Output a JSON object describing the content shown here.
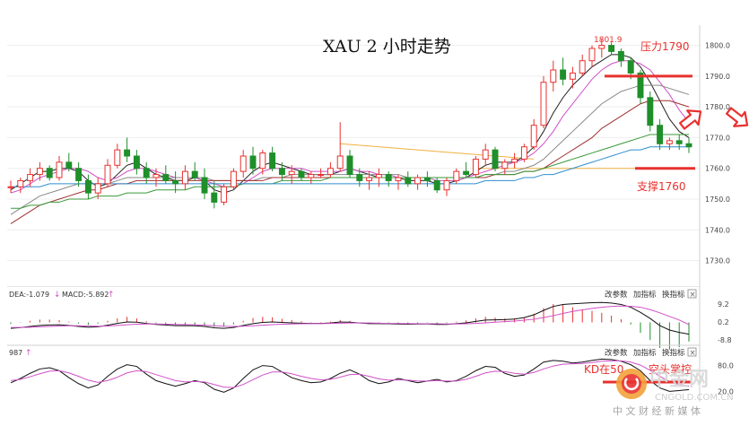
{
  "chart_data": [
    {
      "type": "candlestick",
      "title": "XAU 2 小时走势",
      "y_ticks": [
        1730,
        1740,
        1750,
        1760,
        1770,
        1780,
        1790,
        1800
      ],
      "ylim": [
        1722,
        1806
      ],
      "peak_label": "1801.9",
      "resistance": {
        "label": "压力1790",
        "value": 1790,
        "color": "#e8312f"
      },
      "support": {
        "label": "支撑1760",
        "value": 1760,
        "color": "#e8312f"
      },
      "candles_ohlc": [
        [
          1754,
          1756,
          1752,
          1754
        ],
        [
          1754,
          1757,
          1752,
          1756
        ],
        [
          1756,
          1760,
          1754,
          1758
        ],
        [
          1758,
          1762,
          1756,
          1760
        ],
        [
          1760,
          1761,
          1756,
          1757
        ],
        [
          1757,
          1764,
          1756,
          1762
        ],
        [
          1762,
          1765,
          1759,
          1760
        ],
        [
          1760,
          1762,
          1754,
          1756
        ],
        [
          1756,
          1758,
          1750,
          1752
        ],
        [
          1752,
          1757,
          1750,
          1755
        ],
        [
          1755,
          1763,
          1754,
          1761
        ],
        [
          1761,
          1768,
          1760,
          1766
        ],
        [
          1766,
          1770,
          1762,
          1764
        ],
        [
          1764,
          1766,
          1758,
          1760
        ],
        [
          1760,
          1762,
          1755,
          1757
        ],
        [
          1757,
          1760,
          1754,
          1758
        ],
        [
          1758,
          1761,
          1755,
          1756
        ],
        [
          1756,
          1759,
          1752,
          1755
        ],
        [
          1755,
          1761,
          1753,
          1759
        ],
        [
          1759,
          1762,
          1756,
          1757
        ],
        [
          1757,
          1760,
          1750,
          1752
        ],
        [
          1752,
          1756,
          1747,
          1749
        ],
        [
          1749,
          1755,
          1748,
          1754
        ],
        [
          1754,
          1760,
          1753,
          1759
        ],
        [
          1759,
          1766,
          1757,
          1764
        ],
        [
          1764,
          1767,
          1758,
          1760
        ],
        [
          1760,
          1766,
          1758,
          1765
        ],
        [
          1765,
          1767,
          1759,
          1760
        ],
        [
          1760,
          1762,
          1756,
          1758
        ],
        [
          1758,
          1761,
          1755,
          1759
        ],
        [
          1759,
          1760,
          1756,
          1757
        ],
        [
          1757,
          1759,
          1755,
          1758
        ],
        [
          1758,
          1760,
          1757,
          1758
        ],
        [
          1758,
          1762,
          1757,
          1760
        ],
        [
          1760,
          1775,
          1759,
          1764
        ],
        [
          1764,
          1766,
          1757,
          1758
        ],
        [
          1758,
          1760,
          1754,
          1756
        ],
        [
          1756,
          1759,
          1753,
          1757
        ],
        [
          1757,
          1760,
          1754,
          1758
        ],
        [
          1758,
          1759,
          1754,
          1756
        ],
        [
          1756,
          1758,
          1753,
          1757
        ],
        [
          1757,
          1759,
          1754,
          1755
        ],
        [
          1755,
          1758,
          1753,
          1757
        ],
        [
          1757,
          1759,
          1754,
          1756
        ],
        [
          1756,
          1757,
          1752,
          1753
        ],
        [
          1753,
          1757,
          1751,
          1756
        ],
        [
          1756,
          1760,
          1755,
          1759
        ],
        [
          1759,
          1762,
          1757,
          1758
        ],
        [
          1758,
          1764,
          1757,
          1763
        ],
        [
          1763,
          1768,
          1761,
          1766
        ],
        [
          1766,
          1767,
          1759,
          1760
        ],
        [
          1760,
          1763,
          1758,
          1762
        ],
        [
          1762,
          1765,
          1760,
          1763
        ],
        [
          1763,
          1768,
          1762,
          1767
        ],
        [
          1767,
          1776,
          1766,
          1774
        ],
        [
          1774,
          1790,
          1773,
          1788
        ],
        [
          1788,
          1795,
          1785,
          1792
        ],
        [
          1792,
          1796,
          1787,
          1789
        ],
        [
          1789,
          1793,
          1786,
          1791
        ],
        [
          1791,
          1797,
          1790,
          1795
        ],
        [
          1795,
          1800,
          1793,
          1799
        ],
        [
          1799,
          1802,
          1796,
          1800
        ],
        [
          1800,
          1801,
          1797,
          1798
        ],
        [
          1798,
          1799,
          1793,
          1795
        ],
        [
          1795,
          1796,
          1789,
          1791
        ],
        [
          1791,
          1792,
          1781,
          1783
        ],
        [
          1783,
          1785,
          1772,
          1774
        ],
        [
          1774,
          1776,
          1766,
          1768
        ],
        [
          1768,
          1770,
          1766,
          1769
        ],
        [
          1769,
          1771,
          1766,
          1768
        ],
        [
          1768,
          1770,
          1765,
          1767
        ]
      ],
      "ma_series": [
        {
          "color": "#222222",
          "values": [
            1753,
            1755,
            1757,
            1759,
            1759,
            1760,
            1760,
            1759,
            1756,
            1754,
            1755,
            1758,
            1761,
            1762,
            1760,
            1758,
            1757,
            1756,
            1756,
            1757,
            1756,
            1753,
            1752,
            1753,
            1756,
            1759,
            1761,
            1762,
            1761,
            1760,
            1759,
            1758,
            1758,
            1758,
            1759,
            1760,
            1759,
            1758,
            1757,
            1757,
            1757,
            1756,
            1756,
            1756,
            1755,
            1755,
            1756,
            1757,
            1759,
            1761,
            1762,
            1762,
            1762,
            1764,
            1767,
            1772,
            1778,
            1783,
            1787,
            1790,
            1793,
            1795,
            1797,
            1797,
            1796,
            1793,
            1788,
            1782,
            1776,
            1772,
            1770
          ]
        },
        {
          "color": "#d050c8",
          "values": [
            1752,
            1753,
            1755,
            1757,
            1758,
            1759,
            1760,
            1760,
            1759,
            1757,
            1756,
            1757,
            1759,
            1760,
            1760,
            1759,
            1758,
            1757,
            1757,
            1757,
            1756,
            1755,
            1754,
            1754,
            1755,
            1757,
            1759,
            1760,
            1760,
            1760,
            1760,
            1759,
            1759,
            1759,
            1759,
            1760,
            1759,
            1759,
            1758,
            1758,
            1757,
            1757,
            1757,
            1757,
            1756,
            1756,
            1756,
            1757,
            1758,
            1759,
            1760,
            1761,
            1762,
            1763,
            1765,
            1768,
            1772,
            1777,
            1781,
            1785,
            1789,
            1792,
            1794,
            1795,
            1795,
            1794,
            1792,
            1788,
            1784,
            1779,
            1775
          ]
        },
        {
          "color": "#8a8a8a",
          "values": [
            1745,
            1747,
            1749,
            1751,
            1752,
            1753,
            1754,
            1755,
            1755,
            1755,
            1755,
            1756,
            1757,
            1757,
            1757,
            1757,
            1757,
            1757,
            1757,
            1757,
            1757,
            1756,
            1756,
            1756,
            1756,
            1756,
            1757,
            1757,
            1757,
            1758,
            1758,
            1758,
            1758,
            1758,
            1758,
            1758,
            1758,
            1758,
            1758,
            1758,
            1758,
            1757,
            1757,
            1757,
            1757,
            1757,
            1757,
            1757,
            1757,
            1758,
            1758,
            1759,
            1759,
            1760,
            1761,
            1763,
            1766,
            1769,
            1772,
            1775,
            1778,
            1781,
            1783,
            1785,
            1786,
            1787,
            1787,
            1787,
            1786,
            1785,
            1784
          ]
        },
        {
          "color": "#a03030",
          "values": [
            1742,
            1744,
            1746,
            1748,
            1749,
            1750,
            1751,
            1752,
            1753,
            1753,
            1754,
            1755,
            1755,
            1756,
            1756,
            1756,
            1756,
            1756,
            1756,
            1756,
            1756,
            1756,
            1756,
            1756,
            1756,
            1756,
            1756,
            1757,
            1757,
            1757,
            1757,
            1757,
            1757,
            1757,
            1757,
            1757,
            1757,
            1757,
            1757,
            1757,
            1757,
            1757,
            1757,
            1757,
            1757,
            1757,
            1757,
            1757,
            1757,
            1757,
            1758,
            1758,
            1758,
            1759,
            1759,
            1760,
            1762,
            1764,
            1766,
            1768,
            1770,
            1773,
            1775,
            1777,
            1779,
            1781,
            1782,
            1782,
            1782,
            1781,
            1780
          ]
        },
        {
          "color": "#3a9a3a",
          "values": [
            1747,
            1747,
            1748,
            1748,
            1749,
            1749,
            1750,
            1750,
            1750,
            1751,
            1751,
            1751,
            1752,
            1752,
            1752,
            1753,
            1753,
            1753,
            1753,
            1754,
            1754,
            1754,
            1754,
            1754,
            1755,
            1755,
            1755,
            1755,
            1756,
            1756,
            1756,
            1756,
            1756,
            1757,
            1757,
            1757,
            1757,
            1757,
            1757,
            1757,
            1757,
            1757,
            1757,
            1757,
            1757,
            1757,
            1757,
            1757,
            1757,
            1758,
            1758,
            1758,
            1758,
            1759,
            1759,
            1760,
            1761,
            1762,
            1763,
            1764,
            1765,
            1766,
            1767,
            1768,
            1769,
            1770,
            1771,
            1771,
            1771,
            1771,
            1771
          ]
        },
        {
          "color": "#2f8fd0",
          "values": [
            1754,
            1754,
            1754,
            1754,
            1755,
            1755,
            1755,
            1755,
            1755,
            1755,
            1755,
            1755,
            1755,
            1755,
            1755,
            1755,
            1755,
            1755,
            1755,
            1755,
            1755,
            1755,
            1755,
            1755,
            1755,
            1755,
            1755,
            1755,
            1755,
            1755,
            1755,
            1755,
            1755,
            1755,
            1755,
            1755,
            1755,
            1755,
            1755,
            1755,
            1755,
            1755,
            1755,
            1755,
            1755,
            1755,
            1755,
            1755,
            1755,
            1756,
            1756,
            1756,
            1756,
            1757,
            1757,
            1758,
            1758,
            1759,
            1760,
            1761,
            1762,
            1763,
            1764,
            1765,
            1766,
            1766,
            1767,
            1767,
            1767,
            1767,
            1767
          ]
        }
      ],
      "trendline_color": "#f0b040"
    },
    {
      "type": "macd",
      "header_left": "DEA:-1.079",
      "header_mid": "MACD:-5.892",
      "y_ticks": [
        9.2,
        0.2,
        -8.8
      ],
      "ylim": [
        -11,
        11
      ],
      "buttons": [
        "改参数",
        "加指标",
        "换指标"
      ],
      "dif": [
        -3,
        -2.6,
        -2,
        -1.5,
        -1.3,
        -1.2,
        -1.5,
        -2,
        -2.4,
        -2.2,
        -1.4,
        -0.5,
        0.2,
        0.1,
        -0.5,
        -1,
        -1.3,
        -1.6,
        -1.6,
        -1.7,
        -2,
        -2.7,
        -3,
        -2.5,
        -1.5,
        -0.6,
        0,
        0.2,
        0,
        -0.2,
        -0.4,
        -0.5,
        -0.5,
        -0.3,
        0.2,
        0.1,
        -0.3,
        -0.6,
        -0.6,
        -0.7,
        -0.8,
        -0.9,
        -0.8,
        -0.8,
        -1,
        -1,
        -0.6,
        -0.2,
        0.5,
        1.2,
        1.3,
        1.4,
        1.7,
        2.4,
        3.8,
        6,
        8,
        9,
        9.3,
        9.6,
        9.9,
        10,
        9.7,
        9,
        7.6,
        5,
        2,
        -1.6,
        -3.8,
        -5,
        -5.9
      ],
      "dea": [
        -2.6,
        -2.5,
        -2.4,
        -2.2,
        -2,
        -1.8,
        -1.7,
        -1.7,
        -1.8,
        -1.9,
        -1.8,
        -1.5,
        -1.2,
        -0.9,
        -0.8,
        -0.8,
        -0.9,
        -1,
        -1.1,
        -1.2,
        -1.4,
        -1.6,
        -1.9,
        -2,
        -1.9,
        -1.7,
        -1.4,
        -1.1,
        -0.9,
        -0.8,
        -0.7,
        -0.6,
        -0.6,
        -0.5,
        -0.4,
        -0.3,
        -0.3,
        -0.3,
        -0.4,
        -0.5,
        -0.5,
        -0.6,
        -0.6,
        -0.7,
        -0.7,
        -0.8,
        -0.8,
        -0.7,
        -0.5,
        -0.2,
        0.1,
        0.4,
        0.7,
        1.1,
        1.6,
        2.4,
        3.4,
        4.5,
        5.5,
        6.3,
        7,
        7.6,
        8,
        8.2,
        8.1,
        7.6,
        6.4,
        4.8,
        3,
        1.2,
        -1.1
      ]
    },
    {
      "type": "kdj",
      "header_left": "987",
      "y_ticks": [
        80.0,
        20.0
      ],
      "ylim": [
        0,
        100
      ],
      "buttons": [
        "改参数",
        "加指标",
        "换指标"
      ],
      "k": [
        40,
        50,
        62,
        72,
        75,
        68,
        52,
        38,
        28,
        35,
        55,
        72,
        82,
        78,
        60,
        45,
        38,
        32,
        38,
        45,
        40,
        25,
        18,
        28,
        50,
        70,
        80,
        78,
        65,
        52,
        45,
        40,
        42,
        50,
        62,
        70,
        60,
        45,
        38,
        42,
        50,
        45,
        40,
        44,
        48,
        42,
        45,
        55,
        68,
        78,
        76,
        62,
        55,
        58,
        72,
        88,
        92,
        90,
        86,
        88,
        92,
        95,
        94,
        90,
        82,
        68,
        45,
        28,
        20,
        22,
        24
      ],
      "d": [
        45,
        48,
        54,
        61,
        67,
        68,
        63,
        55,
        46,
        41,
        45,
        53,
        63,
        68,
        66,
        59,
        52,
        45,
        42,
        43,
        42,
        36,
        30,
        29,
        36,
        47,
        58,
        65,
        65,
        61,
        55,
        50,
        47,
        48,
        53,
        59,
        60,
        55,
        49,
        46,
        47,
        46,
        44,
        44,
        45,
        44,
        44,
        48,
        55,
        63,
        67,
        66,
        62,
        60,
        64,
        72,
        79,
        83,
        84,
        85,
        87,
        90,
        91,
        91,
        88,
        81,
        69,
        55,
        43,
        36,
        32
      ]
    }
  ],
  "macd_legend": {
    "color": "#d050c8"
  },
  "kdj_legend": {
    "color": "#d050c8"
  },
  "overlay": {
    "kd_text": "KD在50",
    "trend_text": "空头掌控",
    "close_glyph": "×"
  },
  "watermark": {
    "brand": "中金网",
    "site": "CNGOLD.COM.CN",
    "slogan": "中 文 财 经 新 媒 体"
  }
}
